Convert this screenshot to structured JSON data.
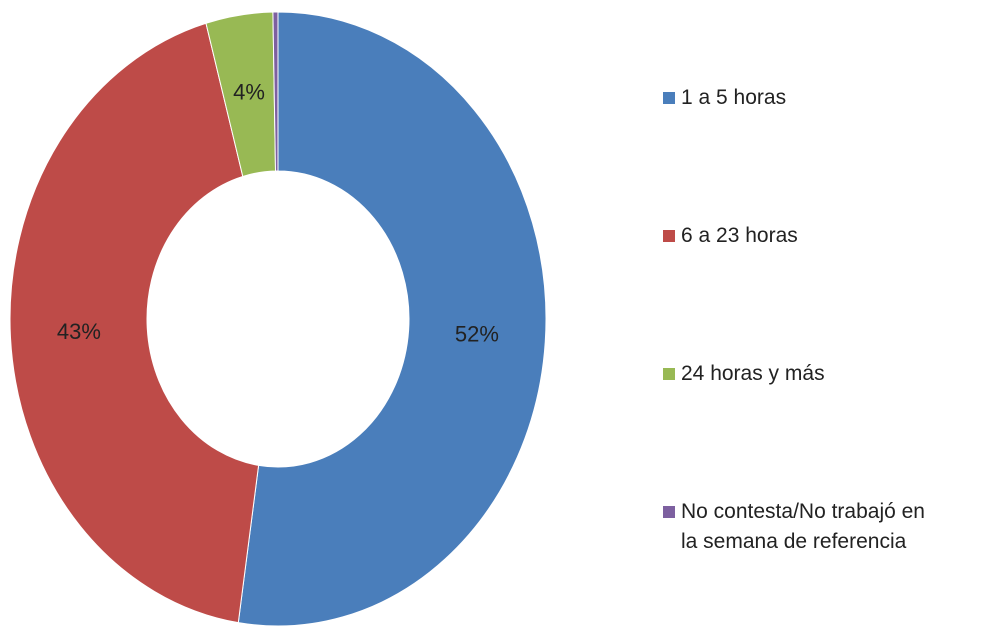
{
  "chart_data": {
    "type": "donut",
    "categories": [
      "1 a 5 horas",
      "6 a 23 horas",
      "24 horas y más",
      "No contesta/No trabajó en la semana de referencia"
    ],
    "values": [
      52,
      43,
      4,
      0.3
    ],
    "value_labels": [
      "52%",
      "43%",
      "4%",
      null
    ],
    "colors": [
      "#4a7ebb",
      "#be4b48",
      "#98b954",
      "#7d60a0"
    ],
    "legend": "right"
  }
}
